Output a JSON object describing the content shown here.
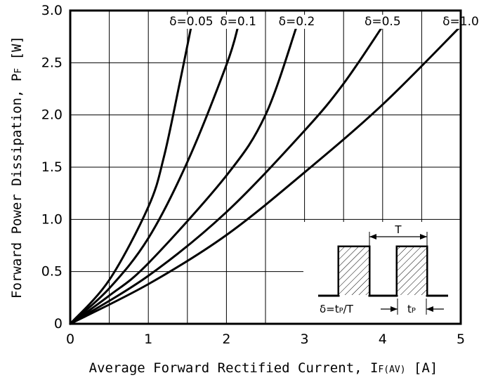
{
  "chart_data": {
    "type": "line",
    "xlabel_main": "Average Forward Rectified Current, I",
    "xlabel_sub": "F(AV)",
    "xlabel_unit": " [A]",
    "ylabel_main": "Forward Power Dissipation, P",
    "ylabel_sub": "F",
    "ylabel_unit": " [W]",
    "xlim": [
      0,
      5
    ],
    "ylim": [
      0,
      3.0
    ],
    "x_ticks": [
      0,
      1,
      2,
      3,
      4,
      5
    ],
    "x_tick_labels": [
      "0",
      "1",
      "2",
      "3",
      "4",
      "5"
    ],
    "y_ticks": [
      0,
      0.5,
      1.0,
      1.5,
      2.0,
      2.5,
      3.0
    ],
    "y_tick_labels": [
      "0",
      "0.5",
      "1.0",
      "1.5",
      "2.0",
      "2.5",
      "3.0"
    ],
    "grid": true,
    "series": [
      {
        "name": "δ=0.05",
        "x": [
          0,
          0.5,
          1.0,
          1.2,
          1.4,
          1.55
        ],
        "y": [
          0,
          0.42,
          1.12,
          1.6,
          2.3,
          2.85
        ]
      },
      {
        "name": "δ=0.1",
        "x": [
          0,
          0.5,
          1.0,
          1.5,
          2.0,
          2.15
        ],
        "y": [
          0,
          0.34,
          0.82,
          1.55,
          2.48,
          2.85
        ]
      },
      {
        "name": "δ=0.2",
        "x": [
          0,
          0.5,
          1.0,
          2.0,
          2.5,
          2.9
        ],
        "y": [
          0,
          0.27,
          0.58,
          1.42,
          2.0,
          2.85
        ]
      },
      {
        "name": "δ=0.5",
        "x": [
          0,
          1.0,
          2.0,
          3.0,
          3.5,
          4.0
        ],
        "y": [
          0,
          0.46,
          1.07,
          1.85,
          2.3,
          2.85
        ]
      },
      {
        "name": "δ=1.0",
        "x": [
          0,
          1.0,
          2.0,
          3.0,
          4.0,
          5.0
        ],
        "y": [
          0,
          0.38,
          0.85,
          1.45,
          2.1,
          2.85
        ]
      }
    ],
    "inset": {
      "period_label": "T",
      "duty_label": "δ=t",
      "duty_sub": "P",
      "duty_rest": "/T",
      "pulse_label": "t",
      "pulse_sub": "P"
    }
  }
}
